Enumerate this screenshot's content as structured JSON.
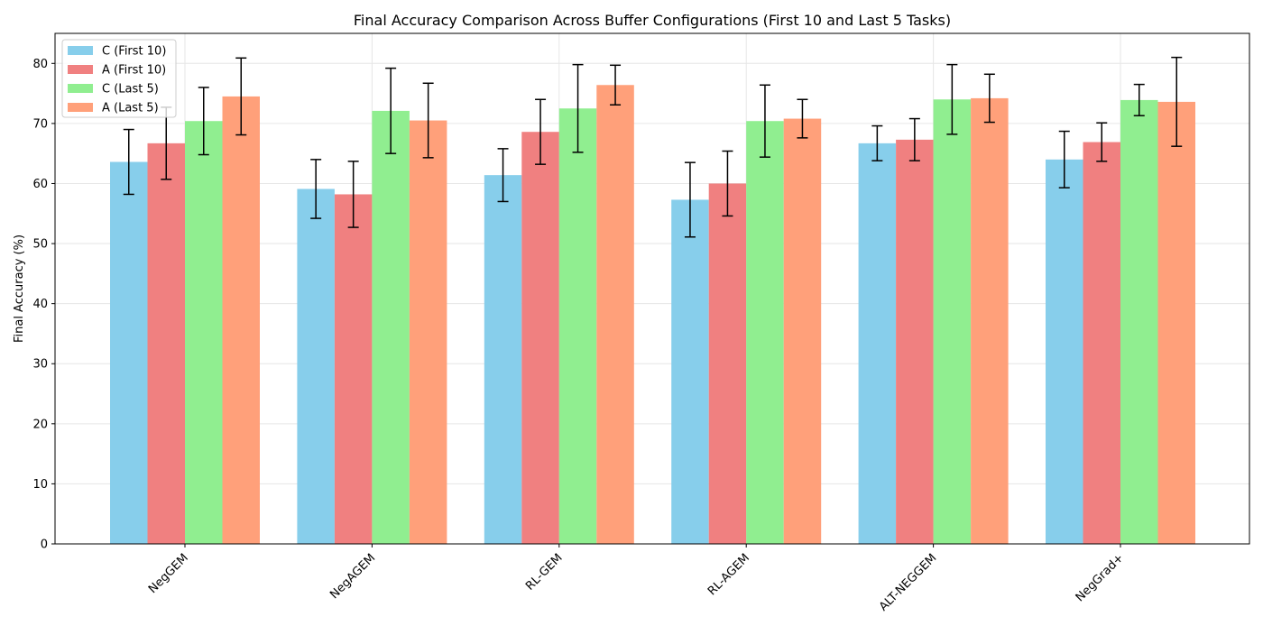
{
  "chart_data": {
    "type": "bar",
    "title": "Final Accuracy Comparison Across Buffer Configurations (First 10 and Last 5 Tasks)",
    "xlabel": "",
    "ylabel": "Final Accuracy (%)",
    "ylim": [
      0,
      85
    ],
    "yticks": [
      0,
      10,
      20,
      30,
      40,
      50,
      60,
      70,
      80
    ],
    "grid": true,
    "legend_position": "top-left",
    "categories": [
      "NegGEM",
      "NegAGEM",
      "RL-GEM",
      "RL-AGEM",
      "ALT-NEGGEM",
      "NegGrad+"
    ],
    "series": [
      {
        "name": "C (First 10)",
        "color": "#87ceeb",
        "values": [
          63.6,
          59.1,
          61.4,
          57.3,
          66.7,
          64.0
        ],
        "errors": [
          5.4,
          4.9,
          4.4,
          6.2,
          2.9,
          4.7
        ]
      },
      {
        "name": "A (First 10)",
        "color": "#f08080",
        "values": [
          66.7,
          58.2,
          68.6,
          60.0,
          67.3,
          66.9
        ],
        "errors": [
          6.0,
          5.5,
          5.4,
          5.4,
          3.5,
          3.2
        ]
      },
      {
        "name": "C (Last 5)",
        "color": "#90ee90",
        "values": [
          70.4,
          72.1,
          72.5,
          70.4,
          74.0,
          73.9
        ],
        "errors": [
          5.6,
          7.1,
          7.3,
          6.0,
          5.8,
          2.6
        ]
      },
      {
        "name": "A (Last 5)",
        "color": "#ffa07a",
        "values": [
          74.5,
          70.5,
          76.4,
          70.8,
          74.2,
          73.6
        ],
        "errors": [
          6.4,
          6.2,
          3.3,
          3.2,
          4.0,
          7.4
        ]
      }
    ]
  }
}
